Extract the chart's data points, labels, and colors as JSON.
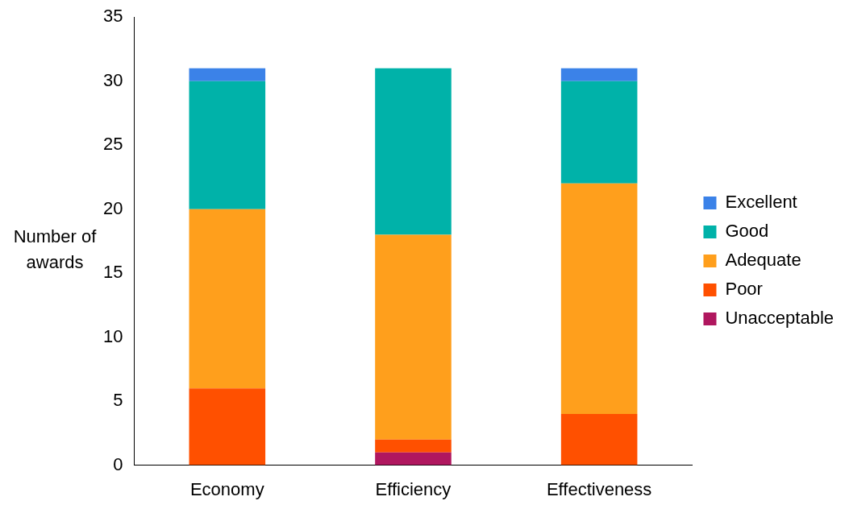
{
  "chart_data": {
    "type": "bar",
    "stacked": true,
    "ylabel": "Number of awards",
    "categories": [
      "Economy",
      "Efficiency",
      "Effectiveness"
    ],
    "series": [
      {
        "name": "Unacceptable",
        "color": "#b0175f",
        "values": [
          0,
          1,
          0
        ]
      },
      {
        "name": "Poor",
        "color": "#ff5000",
        "values": [
          6,
          1,
          4
        ]
      },
      {
        "name": "Adequate",
        "color": "#ff9f1c",
        "values": [
          14,
          16,
          18
        ]
      },
      {
        "name": "Good",
        "color": "#00b2a9",
        "values": [
          10,
          13,
          8
        ]
      },
      {
        "name": "Excellent",
        "color": "#3b82e8",
        "values": [
          1,
          0,
          1
        ]
      }
    ],
    "ylim": [
      0,
      35
    ],
    "yticks": [
      0,
      5,
      10,
      15,
      20,
      25,
      30,
      35
    ],
    "grid": false,
    "legend": "right"
  }
}
